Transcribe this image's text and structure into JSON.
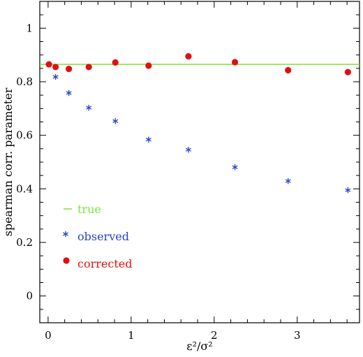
{
  "chart_data": {
    "type": "scatter",
    "xlabel": "ε²/σ²",
    "ylabel": "spearman corr. parameter",
    "xlim": [
      -0.1,
      3.75
    ],
    "ylim": [
      -0.1,
      1.1
    ],
    "x_ticks": [
      0,
      1,
      2,
      3
    ],
    "y_ticks": [
      0,
      0.2,
      0.4,
      0.6,
      0.8,
      1
    ],
    "x_tick_labels": [
      "0",
      "1",
      "2",
      "3"
    ],
    "y_tick_labels": [
      "0",
      "0.2",
      "0.4",
      "0.6",
      "0.8",
      "1"
    ],
    "grid": false,
    "legend_position": "bottom-left",
    "true_value": 0.865,
    "series": [
      {
        "name": "true",
        "kind": "hline",
        "color": "#7fe03a",
        "y": 0.865
      },
      {
        "name": "observed",
        "kind": "star",
        "color": "#2244cc",
        "x": [
          0.09,
          0.25,
          0.49,
          0.81,
          1.21,
          1.69,
          2.25,
          2.89,
          3.61
        ],
        "y": [
          0.818,
          0.758,
          0.703,
          0.653,
          0.584,
          0.546,
          0.481,
          0.429,
          0.395
        ]
      },
      {
        "name": "corrected",
        "kind": "dot",
        "color": "#e01010",
        "x": [
          0.01,
          0.09,
          0.25,
          0.49,
          0.81,
          1.21,
          1.69,
          2.25,
          2.89,
          3.61
        ],
        "y": [
          0.865,
          0.855,
          0.848,
          0.855,
          0.872,
          0.86,
          0.895,
          0.873,
          0.843,
          0.836
        ]
      }
    ]
  }
}
